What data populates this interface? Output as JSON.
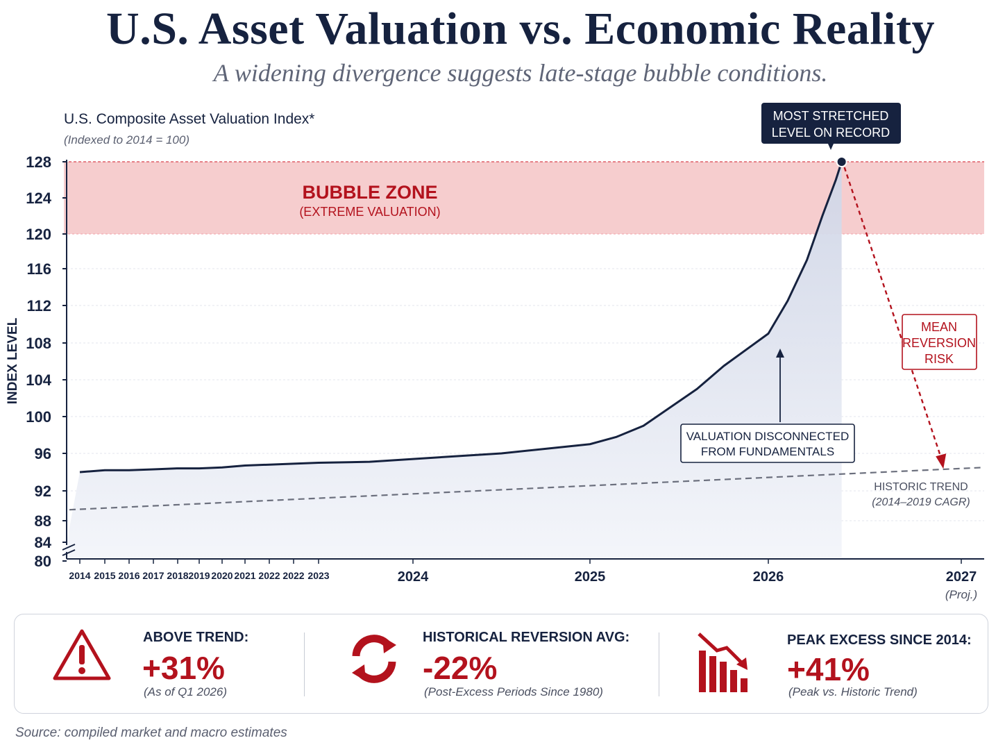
{
  "header": {
    "title": "U.S. Asset Valuation vs. Economic Reality",
    "subtitle": "A widening divergence suggests late-stage bubble conditions."
  },
  "chart_header": {
    "title": "U.S. Composite Asset Valuation Index*",
    "note": "(Indexed to 2014 = 100)"
  },
  "chart_data": {
    "type": "area",
    "title": "U.S. Composite Asset Valuation Index*",
    "ylabel": "INDEX LEVEL",
    "yticks": [
      80,
      84,
      88,
      92,
      96,
      100,
      104,
      108,
      112,
      116,
      120,
      124,
      128
    ],
    "ylim": [
      80,
      128
    ],
    "axis_break": true,
    "grid": true,
    "x_tick_labels": [
      "2014",
      "2015",
      "2016",
      "2017",
      "2018",
      "2019",
      "2020",
      "2021",
      "2022",
      "2022",
      "2023",
      "2024",
      "2025",
      "2026",
      "2027"
    ],
    "x_proj_label": "(Proj.)",
    "series": [
      {
        "name": "U.S. Composite Asset Valuation Index*",
        "color": "#16223f",
        "points": [
          [
            "2014",
            94.0
          ],
          [
            "2015",
            94.2
          ],
          [
            "2016",
            94.2
          ],
          [
            "2017",
            94.3
          ],
          [
            "2018",
            94.4
          ],
          [
            "2019",
            94.4
          ],
          [
            "2020",
            94.5
          ],
          [
            "2021",
            94.7
          ],
          [
            "2022",
            94.8
          ],
          [
            "2022",
            94.9
          ],
          [
            "2023",
            95.0
          ],
          [
            "2023.5",
            95.1
          ],
          [
            "2024",
            95.4
          ],
          [
            "2024.25",
            95.7
          ],
          [
            "2024.5",
            96.0
          ],
          [
            "2024.75",
            96.5
          ],
          [
            "2025",
            97.0
          ],
          [
            "2025.15",
            97.8
          ],
          [
            "2025.3",
            99.0
          ],
          [
            "2025.45",
            101.0
          ],
          [
            "2025.6",
            103.0
          ],
          [
            "2025.75",
            105.5
          ],
          [
            "2026",
            109.0
          ],
          [
            "2026.1",
            112.5
          ],
          [
            "2026.2",
            117.0
          ],
          [
            "2026.28",
            122.0
          ],
          [
            "2026.35",
            126.0
          ],
          [
            "2026.38",
            128.0
          ]
        ]
      },
      {
        "name": "HISTORIC TREND",
        "color": "#6b6f7d",
        "dashed": true,
        "points": [
          [
            "2014",
            90.4
          ],
          [
            "2027",
            94.5
          ]
        ]
      }
    ],
    "bubble_zone": {
      "from": 120,
      "to": 128,
      "label": "BUBBLE ZONE",
      "sublabel": "(EXTREME VALUATION)",
      "color": "#f4c4c6"
    },
    "reversion_arrow": {
      "from": [
        "2026.38",
        128.0
      ],
      "to": [
        "2026.9",
        94.2
      ],
      "color": "#b3121d"
    },
    "annotations": {
      "peak": "MOST STRETCHED LEVEL ON RECORD",
      "disconnect": "VALUATION DISCONNECTED FROM FUNDAMENTALS",
      "risk": "MEAN REVERSION RISK",
      "trend_label": "HISTORIC TREND",
      "trend_sublabel": "(2014–2019 CAGR)"
    }
  },
  "stats": [
    {
      "icon": "warning-triangle-icon",
      "label": "ABOVE TREND:",
      "value": "+31%",
      "note": "(As of Q1 2026)"
    },
    {
      "icon": "refresh-cycle-icon",
      "label": "HISTORICAL REVERSION AVG:",
      "value": "-22%",
      "note": "(Post-Excess Periods Since 1980)"
    },
    {
      "icon": "declining-bars-icon",
      "label": "PEAK EXCESS SINCE 2014:",
      "value": "+41%",
      "note": "(Peak vs. Historic Trend)"
    }
  ],
  "footer": {
    "source": "Source: compiled market and macro estimates"
  },
  "colors": {
    "navy": "#16223f",
    "red": "#b3121d",
    "area_fill": "#dfe3ef",
    "bubble": "#f4c4c6"
  }
}
